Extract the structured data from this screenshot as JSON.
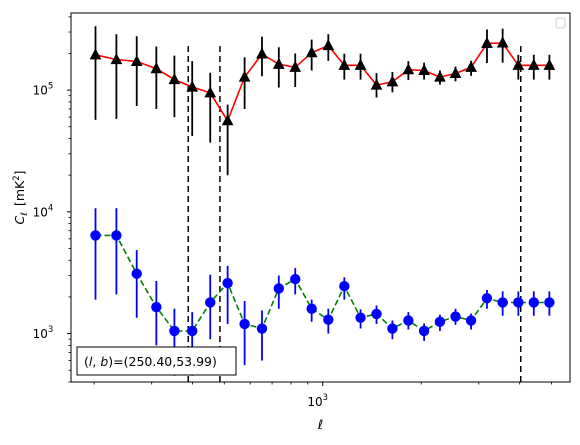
{
  "chart_data": {
    "type": "line",
    "xlabel": "ℓ",
    "ylabel_main": "C",
    "ylabel_sub": "ℓ",
    "ylabel_unit_pre": "[mK",
    "ylabel_unit_sup": "2",
    "ylabel_unit_post": "]",
    "xscale": "log",
    "yscale": "log",
    "xlim": [
      170,
      5700
    ],
    "ylim": [
      400,
      430000
    ],
    "x_tick_labels": [
      {
        "base": "10",
        "exp": "3",
        "value": 1000
      }
    ],
    "y_tick_labels": [
      {
        "base": "10",
        "exp": "3",
        "value": 1000
      },
      {
        "base": "10",
        "exp": "4",
        "value": 10000
      },
      {
        "base": "10",
        "exp": "5",
        "value": 100000
      }
    ],
    "annotation": "(l, b)=(250.40,53.99)",
    "annotation_parts": {
      "prefix": "(",
      "l": "l",
      "sep": ", ",
      "b": "b",
      "suffix": ")=(250.40,53.99)"
    },
    "legend": {
      "location": "top-right",
      "entries": []
    },
    "vlines": [
      388,
      485,
      4030
    ],
    "series": [
      {
        "style": "upper",
        "color": "#ff0000",
        "marker_color": "#000000",
        "marker": "triangle",
        "linestyle": "solid",
        "x": [
          202,
          234,
          270,
          310,
          352,
          399,
          453,
          512,
          577,
          652,
          734,
          824,
          925,
          1040,
          1164,
          1305,
          1460,
          1633,
          1827,
          2041,
          2282,
          2546,
          2841,
          3177,
          3548,
          3962,
          4418,
          4930
        ],
        "y": [
          195000,
          178000,
          172000,
          150000,
          122000,
          106000,
          95000,
          56000,
          128000,
          198000,
          163000,
          154000,
          203000,
          232000,
          160000,
          160000,
          110000,
          117000,
          147000,
          145000,
          128000,
          137000,
          154000,
          242000,
          244000,
          160000,
          160000,
          160000
        ],
        "yerr_low": [
          138000,
          120000,
          98000,
          80000,
          62000,
          64000,
          58000,
          36000,
          58000,
          68000,
          58000,
          48000,
          58000,
          58000,
          38000,
          38000,
          23000,
          21000,
          26000,
          23000,
          17000,
          19000,
          23000,
          75000,
          76000,
          38000,
          38000,
          38000
        ],
        "yerr_high": [
          140000,
          110000,
          105000,
          78000,
          70000,
          67000,
          44000,
          20000,
          58000,
          77000,
          62000,
          46000,
          57000,
          56000,
          39000,
          39000,
          28000,
          24000,
          26000,
          23000,
          17000,
          19000,
          20000,
          73000,
          76000,
          35000,
          35000,
          35000
        ]
      },
      {
        "style": "lower",
        "color": "#008000",
        "marker_color": "#0000ff",
        "marker": "circle",
        "linestyle": "dashed",
        "x": [
          202,
          234,
          270,
          310,
          352,
          399,
          453,
          512,
          577,
          652,
          734,
          824,
          925,
          1040,
          1164,
          1305,
          1460,
          1633,
          1827,
          2041,
          2282,
          2546,
          2841,
          3177,
          3548,
          3962,
          4418,
          4930
        ],
        "y": [
          6400,
          6400,
          3100,
          1650,
          1050,
          1050,
          1800,
          2600,
          1200,
          1100,
          2350,
          2800,
          1600,
          1300,
          2450,
          1350,
          1450,
          1100,
          1280,
          1050,
          1250,
          1380,
          1280,
          1950,
          1800,
          1800,
          1800,
          1800
        ],
        "yerr_low": [
          4500,
          4300,
          1750,
          850,
          600,
          600,
          900,
          1400,
          650,
          500,
          750,
          700,
          350,
          300,
          550,
          250,
          250,
          200,
          200,
          180,
          200,
          200,
          200,
          350,
          400,
          400,
          400,
          400
        ],
        "yerr_high": [
          4300,
          4300,
          1750,
          1050,
          550,
          450,
          1250,
          1000,
          650,
          450,
          650,
          650,
          300,
          300,
          450,
          230,
          250,
          180,
          220,
          160,
          180,
          220,
          180,
          330,
          420,
          420,
          420,
          420
        ]
      }
    ]
  }
}
